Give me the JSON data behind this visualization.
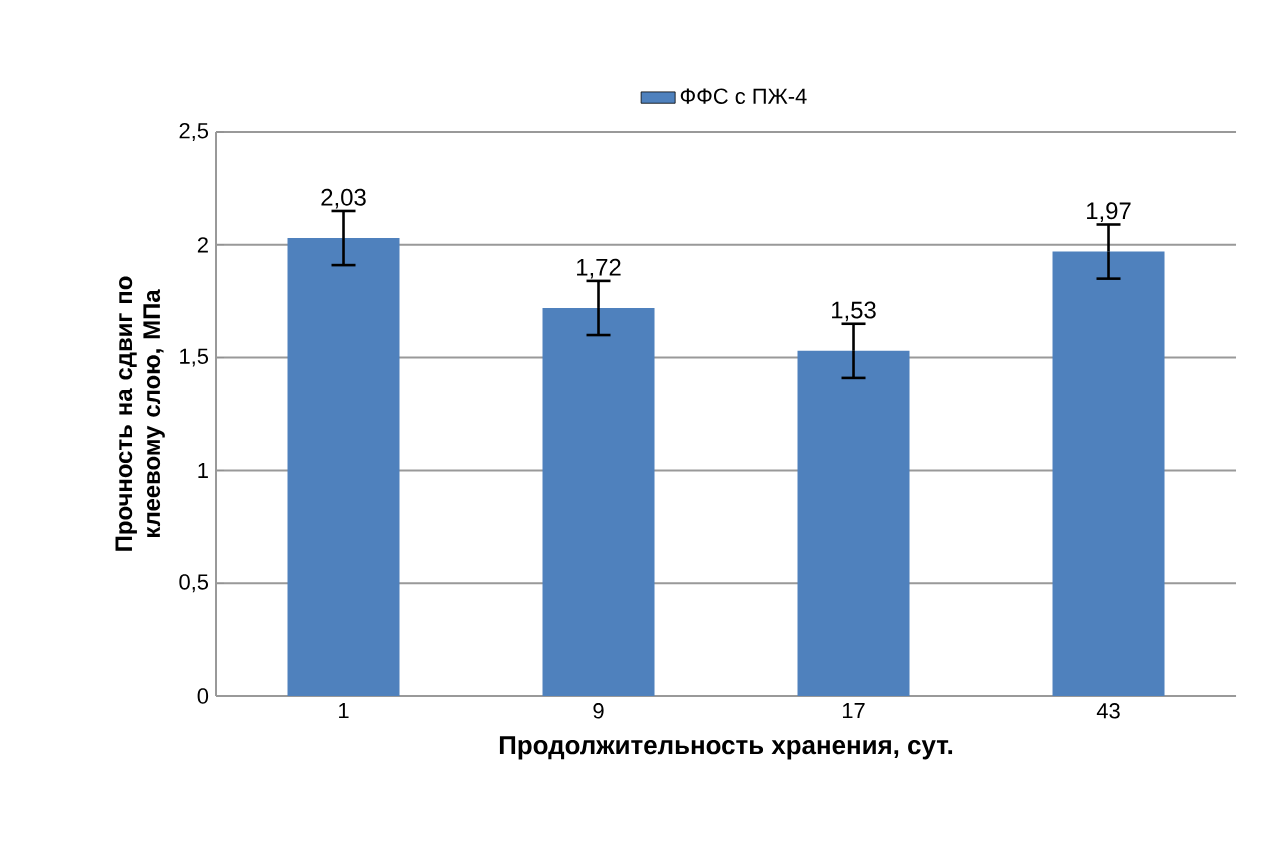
{
  "chart_data": {
    "type": "bar",
    "xlabel": "Продолжительность хранения, сут.",
    "ylabel": "Прочность на сдвиг по клеевому слою, МПа",
    "categories": [
      "1",
      "9",
      "17",
      "43"
    ],
    "series": [
      {
        "name": "ФФС с  ПЖ-4",
        "color": "#4f81bd",
        "values": [
          2.03,
          1.72,
          1.53,
          1.97
        ],
        "errors": [
          0.12,
          0.12,
          0.12,
          0.12
        ],
        "value_labels": [
          "2,03",
          "1,72",
          "1,53",
          "1,97"
        ]
      }
    ],
    "ylim": [
      0,
      2.5
    ],
    "yticks": [
      {
        "value": 0,
        "label": "0"
      },
      {
        "value": 0.5,
        "label": "0,5"
      },
      {
        "value": 1,
        "label": "1"
      },
      {
        "value": 1.5,
        "label": "1,5"
      },
      {
        "value": 2,
        "label": "2"
      },
      {
        "value": 2.5,
        "label": "2,5"
      }
    ],
    "grid": "y",
    "legend": "top"
  }
}
